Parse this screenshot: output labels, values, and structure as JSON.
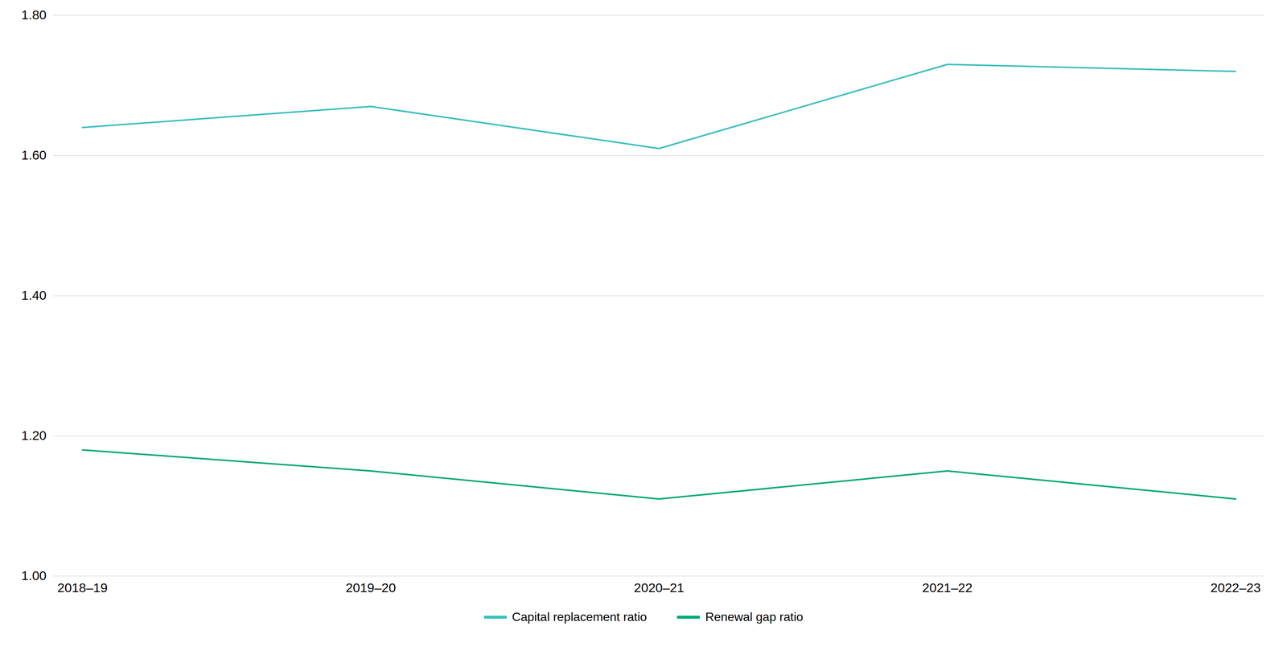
{
  "chart_data": {
    "type": "line",
    "categories": [
      "2018–19",
      "2019–20",
      "2020–21",
      "2021–22",
      "2022–23"
    ],
    "series": [
      {
        "name": "Capital replacement ratio",
        "color": "#3BBFBF",
        "values": [
          1.64,
          1.67,
          1.61,
          1.73,
          1.72
        ]
      },
      {
        "name": "Renewal gap ratio",
        "color": "#00A878",
        "values": [
          1.18,
          1.15,
          1.11,
          1.15,
          1.11
        ]
      }
    ],
    "ylim": [
      1.0,
      1.8
    ],
    "yticks": [
      {
        "value": 1.0,
        "label": "1.00"
      },
      {
        "value": 1.2,
        "label": "1.20"
      },
      {
        "value": 1.4,
        "label": "1.40"
      },
      {
        "value": 1.6,
        "label": "1.60"
      },
      {
        "value": 1.8,
        "label": "1.80"
      }
    ],
    "grid": true,
    "legend": "bottom"
  }
}
